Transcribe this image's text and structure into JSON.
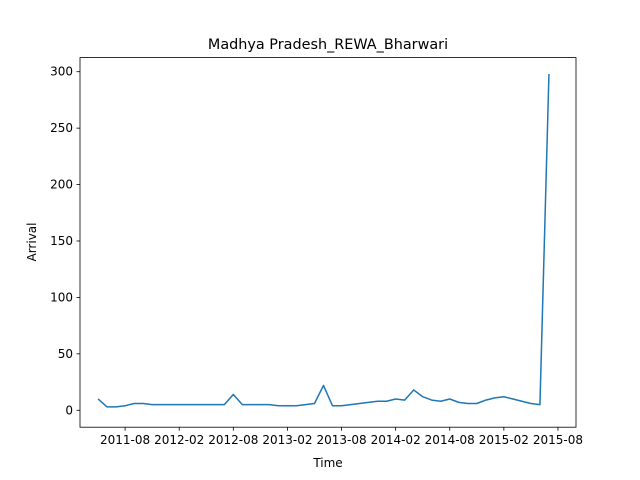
{
  "chart_data": {
    "type": "line",
    "title": "Madhya Pradesh_REWA_Bharwari",
    "xlabel": "Time",
    "ylabel": "Arrival",
    "color": "#1f77b4",
    "x": [
      "2011-05",
      "2011-06",
      "2011-07",
      "2011-08",
      "2011-09",
      "2011-10",
      "2011-11",
      "2011-12",
      "2012-01",
      "2012-02",
      "2012-03",
      "2012-04",
      "2012-05",
      "2012-06",
      "2012-07",
      "2012-08",
      "2012-09",
      "2012-10",
      "2012-11",
      "2012-12",
      "2013-01",
      "2013-02",
      "2013-03",
      "2013-04",
      "2013-05",
      "2013-06",
      "2013-07",
      "2013-08",
      "2013-09",
      "2013-10",
      "2013-11",
      "2013-12",
      "2014-01",
      "2014-02",
      "2014-03",
      "2014-04",
      "2014-05",
      "2014-06",
      "2014-07",
      "2014-08",
      "2014-09",
      "2014-10",
      "2014-11",
      "2014-12",
      "2015-01",
      "2015-02",
      "2015-03",
      "2015-04",
      "2015-05",
      "2015-06",
      "2015-07"
    ],
    "values": [
      10,
      3,
      3,
      4,
      6,
      6,
      5,
      5,
      5,
      5,
      5,
      5,
      5,
      5,
      5,
      14,
      5,
      5,
      5,
      5,
      4,
      4,
      4,
      5,
      6,
      22,
      4,
      4,
      5,
      6,
      7,
      8,
      8,
      10,
      9,
      18,
      12,
      9,
      8,
      10,
      7,
      6,
      6,
      9,
      11,
      12,
      10,
      8,
      6,
      5,
      298
    ],
    "xlim": [
      "2011-03",
      "2015-10"
    ],
    "xticks": [
      "2011-08",
      "2012-02",
      "2012-08",
      "2013-02",
      "2013-08",
      "2014-02",
      "2014-08",
      "2015-02",
      "2015-08"
    ],
    "ylim": [
      -15,
      312.5
    ],
    "yticks": [
      0,
      50,
      100,
      150,
      200,
      250,
      300
    ]
  }
}
